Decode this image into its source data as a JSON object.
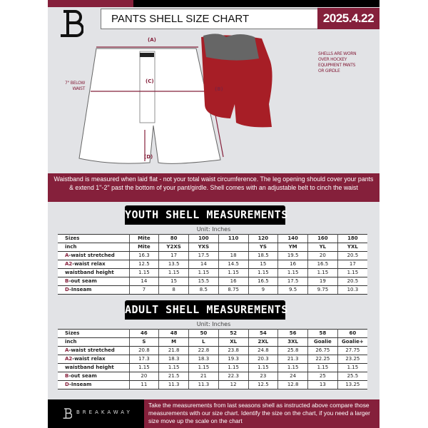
{
  "header": {
    "title": "PANTS SHELL SIZE CHART",
    "date": "2025.4.22"
  },
  "diagram": {
    "label_a": "(A)",
    "label_b": "(B)",
    "label_c": "(C)",
    "label_d": "(D)",
    "c_note": "7'' BELOW WAIST",
    "side_note": "SHELLS ARE WORN OVER HOCKEY EQUIPMENT PANTS OR GIRDLE"
  },
  "banner": "Waistband is measured when laid flat - not your total waist circumference. The leg opening should cover your pants & extend 1''-2'' past the bottom of your pant/girdle. Shell comes with an adjustable belt to cinch the waist",
  "youth": {
    "title": "YOUTH SHELL MEASUREMENTS",
    "unit": "Unit: Inches",
    "rows": [
      {
        "prefix": "",
        "label": "Sizes",
        "values": [
          "Mite",
          "80",
          "100",
          "110",
          "120",
          "140",
          "160",
          "180"
        ]
      },
      {
        "prefix": "",
        "label": "inch",
        "values": [
          "Mite",
          "Y2XS",
          "YXS",
          "",
          "YS",
          "YM",
          "YL",
          "YXL"
        ]
      },
      {
        "prefix": "A",
        "label": "-waist stretched",
        "values": [
          "16.3",
          "17",
          "17.5",
          "18",
          "18.5",
          "19.5",
          "20",
          "20.5"
        ]
      },
      {
        "prefix": "A2",
        "label": "-waist relax",
        "values": [
          "12.5",
          "13.5",
          "14",
          "14.5",
          "15",
          "16",
          "16.5",
          "17"
        ]
      },
      {
        "prefix": "",
        "label": "waistband height",
        "values": [
          "1.15",
          "1.15",
          "1.15",
          "1.15",
          "1.15",
          "1.15",
          "1.15",
          "1.15"
        ]
      },
      {
        "prefix": "B",
        "label": "-out seam",
        "values": [
          "14",
          "15",
          "15.5",
          "16",
          "16.5",
          "17.5",
          "19",
          "20.5"
        ]
      },
      {
        "prefix": "D",
        "label": "-Inseam",
        "values": [
          "7",
          "8",
          "8.5",
          "8.75",
          "9",
          "9.5",
          "9.75",
          "10.3"
        ]
      }
    ]
  },
  "adult": {
    "title": "ADULT SHELL MEASUREMENTS",
    "unit": "Unit: Inches",
    "rows": [
      {
        "prefix": "",
        "label": "Sizes",
        "values": [
          "46",
          "48",
          "50",
          "52",
          "54",
          "56",
          "58",
          "60"
        ]
      },
      {
        "prefix": "",
        "label": "inch",
        "values": [
          "S",
          "M",
          "L",
          "XL",
          "2XL",
          "3XL",
          "Goalie",
          "Goalie+"
        ]
      },
      {
        "prefix": "A",
        "label": "-waist stretched",
        "values": [
          "20.8",
          "21.8",
          "22.8",
          "23.8",
          "24.8",
          "25.8",
          "26.75",
          "27.75"
        ]
      },
      {
        "prefix": "A2",
        "label": "-waist relax",
        "values": [
          "17.3",
          "18.3",
          "18.3",
          "19.3",
          "20.3",
          "21.3",
          "22.25",
          "23.25"
        ]
      },
      {
        "prefix": "",
        "label": "waistband height",
        "values": [
          "1.15",
          "1.15",
          "1.15",
          "1.15",
          "1.15",
          "1.15",
          "1.15",
          "1.15"
        ]
      },
      {
        "prefix": "B",
        "label": "-out seam",
        "values": [
          "20",
          "21.5",
          "21",
          "22.3",
          "23",
          "24",
          "25",
          "25.5"
        ]
      },
      {
        "prefix": "D",
        "label": "-Inseam",
        "values": [
          "11",
          "11.3",
          "11.3",
          "12",
          "12.5",
          "12.8",
          "13",
          "13.25"
        ]
      }
    ]
  },
  "footer": {
    "brand": "BREAKAWAY",
    "text": "Take the measurements from last seasons shell as instructed above compare those measurements  with our size chart. Identify the size on the chart, if you need a larger size move up the scale on the chart"
  },
  "colors": {
    "accent": "#85203b",
    "dark": "#000000",
    "background": "#e2e3e6"
  }
}
